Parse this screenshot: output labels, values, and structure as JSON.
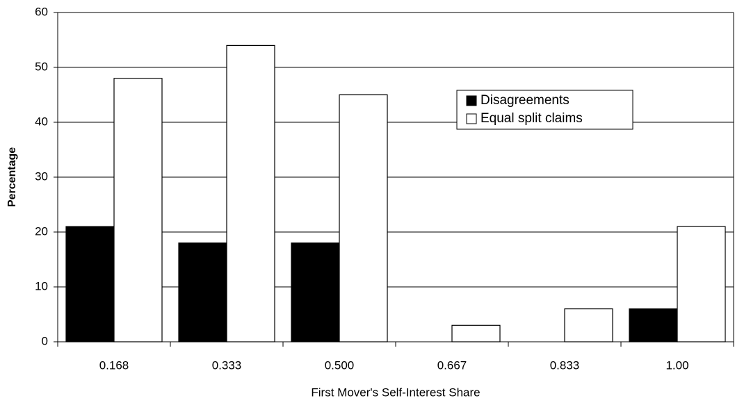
{
  "chart_data": {
    "type": "bar",
    "xlabel": "First Mover's Self-Interest Share",
    "ylabel": "Percentage",
    "categories": [
      "0.168",
      "0.333",
      "0.500",
      "0.667",
      "0.833",
      "1.00"
    ],
    "series": [
      {
        "name": "Disagreements",
        "color": "#000000",
        "values": [
          21,
          18,
          18,
          0,
          0,
          6
        ]
      },
      {
        "name": "Equal split claims",
        "color": "#ffffff",
        "values": [
          48,
          54,
          45,
          3,
          6,
          21
        ]
      }
    ],
    "ylim": [
      0,
      60
    ],
    "yticks": [
      0,
      10,
      20,
      30,
      40,
      50,
      60
    ],
    "grid": true,
    "legend": "upper right"
  }
}
